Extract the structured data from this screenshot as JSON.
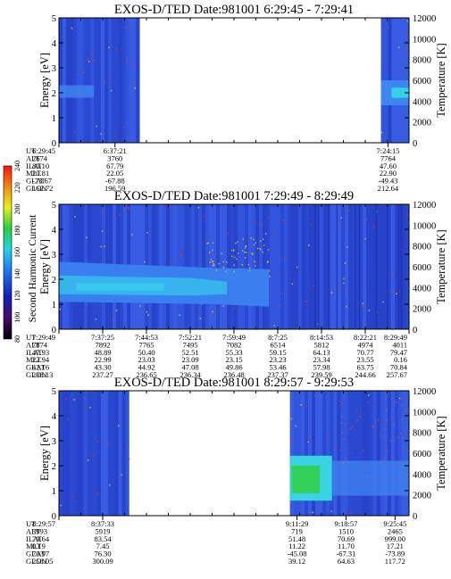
{
  "chart_data": {
    "type": "heatmap",
    "colorbar": {
      "label": "Second Harmonic Current",
      "ticks": [
        80,
        100,
        120,
        140,
        160,
        180,
        200,
        220,
        240
      ],
      "range": [
        80,
        240
      ]
    },
    "panels": [
      {
        "title": "EXOS-D/TED   Date:981001  6:29:45 - 7:29:41",
        "ylabel_left": "Energy [eV]",
        "ylabel_right": "Temperature [K]",
        "ylim_left": [
          0,
          5
        ],
        "ylim_right": [
          0,
          12000
        ],
        "yticks_left": [
          "0",
          "1",
          "2",
          "3",
          "4",
          "5"
        ],
        "yticks_right": [
          "0",
          "2000",
          "4000",
          "6000",
          "8000",
          "10000",
          "12000"
        ],
        "data_segments": [
          [
            0.0,
            0.23
          ],
          [
            0.92,
            1.0
          ]
        ],
        "info_labels": [
          "UT",
          "ALT",
          "ILAT",
          "MLT",
          "GLAT",
          "GLON"
        ],
        "columns": [
          {
            "pos": 0.0,
            "values": [
              "6:29:45",
              "2674",
              "80.10",
              "20.81",
              "-73.67",
              "162.72"
            ]
          },
          {
            "pos": 0.16,
            "values": [
              "6:37:21",
              "3760",
              "67.79",
              "22.05",
              "-67.88",
              "196.59"
            ]
          },
          {
            "pos": 0.94,
            "values": [
              "7:24:15",
              "7764",
              "47.60",
              "22.90",
              "-49.43",
              "212.64"
            ]
          }
        ]
      },
      {
        "title": "EXOS-D/TED   Date:981001  7:29:49 - 8:29:49",
        "ylabel_left": "Energy [eV]",
        "ylabel_right": "Temperature [K]",
        "ylim_left": [
          0,
          5
        ],
        "ylim_right": [
          0,
          12000
        ],
        "yticks_left": [
          "0",
          "1",
          "2",
          "3",
          "4",
          "5"
        ],
        "yticks_right": [
          "0",
          "2000",
          "4000",
          "6000",
          "8000",
          "10000",
          "12000"
        ],
        "data_segments": [
          [
            0.0,
            1.0
          ]
        ],
        "info_labels": [
          "UT",
          "ALT",
          "ILAT",
          "MLT",
          "GLAT",
          "GLON"
        ],
        "columns": [
          {
            "pos": 0.0,
            "values": [
              "7:29:49",
              "7874",
              "47.93",
              "22.94",
              "42.16",
              "238.13"
            ]
          },
          {
            "pos": 0.125,
            "values": [
              "7:37:25",
              "7892",
              "48.89",
              "22.99",
              "43.30",
              "237.27"
            ]
          },
          {
            "pos": 0.25,
            "values": [
              "7:44:53",
              "7765",
              "50.40",
              "23.03",
              "44.92",
              "236.65"
            ]
          },
          {
            "pos": 0.375,
            "values": [
              "7:52:21",
              "7495",
              "52.51",
              "23.09",
              "47.08",
              "236.34"
            ]
          },
          {
            "pos": 0.5,
            "values": [
              "7:59:49",
              "7082",
              "55.33",
              "23.15",
              "49.86",
              "236.48"
            ]
          },
          {
            "pos": 0.625,
            "values": [
              "8:7:25",
              "6514",
              "59.15",
              "23.23",
              "53.46",
              "237.37"
            ]
          },
          {
            "pos": 0.75,
            "values": [
              "8:14:53",
              "5812",
              "64.13",
              "23.34",
              "57.98",
              "239.59"
            ]
          },
          {
            "pos": 0.875,
            "values": [
              "8:22:21",
              "4974",
              "70.77",
              "23.55",
              "63.75",
              "244.66"
            ]
          },
          {
            "pos": 1.0,
            "values": [
              "8:29:49",
              "4011",
              "79.47",
              "0.16",
              "70.84",
              "257.67"
            ]
          }
        ]
      },
      {
        "title": "EXOS-D/TED   Date:981001  8:29:57 - 9:29:53",
        "ylabel_left": "Energy [eV]",
        "ylabel_right": "Temperature [K]",
        "ylim_left": [
          0,
          5
        ],
        "ylim_right": [
          0,
          12000
        ],
        "yticks_left": [
          "0",
          "1",
          "2",
          "3",
          "4",
          "5"
        ],
        "yticks_right": [
          "0",
          "2000",
          "4000",
          "6000",
          "8000",
          "10000",
          "12000"
        ],
        "data_segments": [
          [
            0.0,
            0.2
          ],
          [
            0.66,
            1.0
          ]
        ],
        "info_labels": [
          "UT",
          "ALT",
          "ILAT",
          "MLT",
          "GLAT",
          "GLON"
        ],
        "columns": [
          {
            "pos": 0.0,
            "values": [
              "8:29:57",
              "3993",
              "79.64",
              "0.19",
              "70.97",
              "258.05"
            ]
          },
          {
            "pos": 0.125,
            "values": [
              "8:37:33",
              "5919",
              "83.54",
              "7.45",
              "76.30",
              "300.09"
            ]
          },
          {
            "pos": 0.68,
            "values": [
              "9:11:29",
              "719",
              "51.48",
              "11.22",
              "-45.08",
              "39.12"
            ]
          },
          {
            "pos": 0.82,
            "values": [
              "9:18:57",
              "1510",
              "70.69",
              "11.70",
              "-67.31",
              "64.63"
            ]
          },
          {
            "pos": 0.96,
            "values": [
              "9:25:45",
              "2465",
              "999.00",
              "17.21",
              "-73.89",
              "117.72"
            ]
          }
        ]
      }
    ]
  }
}
